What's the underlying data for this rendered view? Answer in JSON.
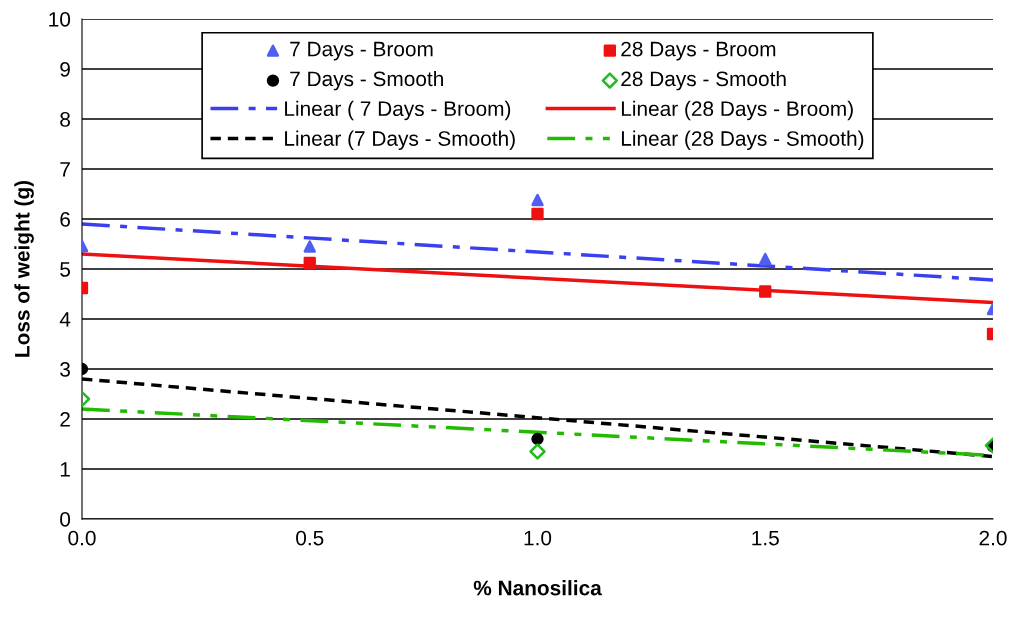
{
  "chart_data": {
    "type": "scatter",
    "xlabel": "% Nanosilica",
    "ylabel": "Loss of weight (g)",
    "xlim": [
      0,
      2
    ],
    "ylim": [
      0,
      10
    ],
    "xticks": [
      {
        "value": 0,
        "label": "0.0"
      },
      {
        "value": 0.5,
        "label": "0.5"
      },
      {
        "value": 1,
        "label": "1.0"
      },
      {
        "value": 1.5,
        "label": "1.5"
      },
      {
        "value": 2,
        "label": "2.0"
      }
    ],
    "yticks": [
      0,
      1,
      2,
      3,
      4,
      5,
      6,
      7,
      8,
      9,
      10
    ],
    "grid": "y",
    "legend": "top",
    "series": [
      {
        "name": " 7 Days - Broom",
        "marker": "triangle",
        "color": "#4f5ff0",
        "x": [
          0,
          0.5,
          1,
          1.5,
          2
        ],
        "values": [
          5.46,
          5.45,
          6.38,
          5.2,
          4.2
        ]
      },
      {
        "name": "28 Days - Broom",
        "marker": "square",
        "color": "#ee1111",
        "x": [
          0,
          0.5,
          1,
          1.5,
          2
        ],
        "values": [
          4.62,
          5.12,
          6.1,
          4.55,
          3.7
        ]
      },
      {
        "name": " 7 Days - Smooth",
        "marker": "circle",
        "color": "#000000",
        "x": [
          0,
          1,
          2
        ],
        "values": [
          3.0,
          1.6,
          1.45
        ]
      },
      {
        "name": "28 Days - Smooth",
        "marker": "diamond",
        "color": "#22bb22",
        "x": [
          0,
          1,
          2
        ],
        "values": [
          2.4,
          1.35,
          1.47
        ]
      },
      {
        "name": "Linear ( 7 Days - Broom)",
        "type": "line",
        "line_style": "dashdot",
        "color": "#3a3ff0",
        "x": [
          0,
          2
        ],
        "values": [
          5.9,
          4.78
        ]
      },
      {
        "name": "Linear (28 Days - Broom)",
        "type": "line",
        "line_style": "solid",
        "color": "#ee1111",
        "x": [
          0,
          2
        ],
        "values": [
          5.3,
          4.33
        ]
      },
      {
        "name": "Linear (7 Days - Smooth)",
        "type": "line",
        "line_style": "dashed",
        "color": "#000000",
        "x": [
          0,
          2
        ],
        "values": [
          2.8,
          1.25
        ]
      },
      {
        "name": "Linear (28 Days - Smooth)",
        "type": "line",
        "line_style": "dashdotdot",
        "color": "#22bb00",
        "x": [
          0,
          2
        ],
        "values": [
          2.2,
          1.27
        ]
      }
    ]
  }
}
